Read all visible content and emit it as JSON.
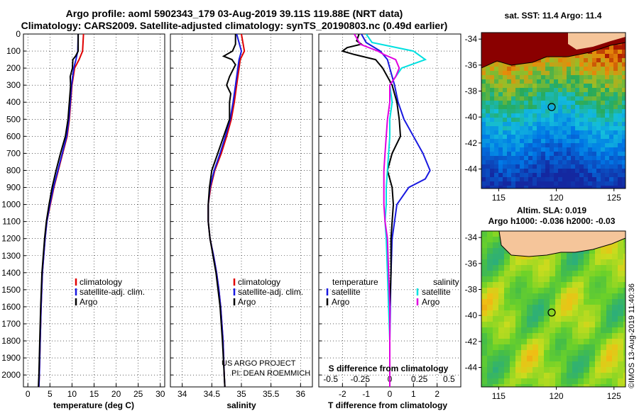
{
  "header": {
    "title_line1": "Argo profile: aoml 5902343_179 03-Aug-2019 39.11S 119.88E (NRT data)",
    "title_line2": "Climatology: CARS2009. Satellite-adjusted climatology: synTS_20190803.nc (0.49d earlier)"
  },
  "credits": {
    "project": "US ARGO PROJECT",
    "pi": "PI: DEAN ROEMMICH",
    "stamp": "©IMOS 13-Aug-2019 11:40:36"
  },
  "colors": {
    "climatology": "#e00000",
    "satellite": "#1818e0",
    "argo": "#000000",
    "sat_salinity": "#00e0e0",
    "argo_salinity": "#e000e0",
    "land": "#f5c59a"
  },
  "chart_data": [
    {
      "type": "line",
      "name": "temperature-profile",
      "xlabel": "temperature (deg C)",
      "ylabel": "depth (m)",
      "xlim": [
        -1,
        31
      ],
      "ylim": [
        2070,
        0
      ],
      "xticks": [
        "0",
        "5",
        "10",
        "15",
        "20",
        "25",
        "30"
      ],
      "yticks": [
        "0",
        "100",
        "200",
        "300",
        "400",
        "500",
        "600",
        "700",
        "800",
        "900",
        "1000",
        "1100",
        "1200",
        "1300",
        "1400",
        "1500",
        "1600",
        "1700",
        "1800",
        "1900",
        "2000"
      ],
      "legend": [
        "climatology",
        "satellite-adj. clim.",
        "Argo"
      ],
      "series": [
        {
          "name": "climatology",
          "color": "#e00000",
          "depth": [
            0,
            100,
            150,
            200,
            300,
            500,
            600,
            700,
            800,
            900,
            1000,
            1100,
            1200,
            1400,
            1600,
            1800,
            2000,
            2070
          ],
          "values": [
            12.6,
            12.4,
            11.6,
            10.6,
            10.0,
            9.4,
            8.9,
            7.9,
            6.9,
            5.9,
            5.1,
            4.3,
            3.9,
            3.3,
            3.0,
            2.8,
            2.6,
            2.5
          ]
        },
        {
          "name": "satellite-adj. clim.",
          "color": "#1818e0",
          "depth": [
            0,
            100,
            150,
            200,
            300,
            500,
            600,
            700,
            800,
            900,
            1000,
            1100,
            1200,
            1400,
            1600,
            1800,
            2000,
            2070
          ],
          "values": [
            11.4,
            11.3,
            10.9,
            10.4,
            9.9,
            9.3,
            8.8,
            7.8,
            6.8,
            5.8,
            5.0,
            4.3,
            3.9,
            3.3,
            3.0,
            2.8,
            2.6,
            2.5
          ]
        },
        {
          "name": "Argo",
          "color": "#000000",
          "depth": [
            0,
            100,
            130,
            150,
            200,
            250,
            300,
            500,
            600,
            700,
            800,
            900,
            1000,
            1100,
            1200,
            1400,
            1600,
            1800,
            2000,
            2070
          ],
          "values": [
            11.4,
            11.4,
            10.8,
            10.2,
            10.1,
            9.6,
            9.7,
            9.1,
            8.5,
            7.4,
            6.4,
            5.5,
            4.8,
            4.2,
            3.8,
            3.2,
            2.9,
            2.7,
            2.5,
            2.4
          ]
        }
      ]
    },
    {
      "type": "line",
      "name": "salinity-profile",
      "xlabel": "salinity",
      "ylim": [
        2070,
        0
      ],
      "xlim": [
        33.8,
        36.2
      ],
      "xticks": [
        "34",
        "34.5",
        "35",
        "35.5",
        "36"
      ],
      "legend": [
        "climatology",
        "satellite-adj. clim.",
        "Argo"
      ],
      "series": [
        {
          "name": "climatology",
          "color": "#e00000",
          "depth": [
            0,
            100,
            150,
            200,
            300,
            400,
            500,
            600,
            700,
            800,
            900,
            1000,
            1100,
            1200,
            1300,
            1400,
            1500,
            1600,
            1700,
            1800,
            1900,
            2000,
            2070
          ],
          "values": [
            35.0,
            35.05,
            34.98,
            34.96,
            34.92,
            34.88,
            34.83,
            34.75,
            34.66,
            34.55,
            34.48,
            34.44,
            34.44,
            34.47,
            34.53,
            34.58,
            34.62,
            34.65,
            34.67,
            34.69,
            34.7,
            34.71,
            34.72
          ]
        },
        {
          "name": "satellite-adj. clim.",
          "color": "#1818e0",
          "depth": [
            0,
            100,
            150,
            200,
            300,
            400,
            500,
            600,
            700,
            800,
            900,
            1000,
            1100,
            1200,
            1300,
            1400,
            1500,
            1600,
            1700,
            1800,
            1900,
            2000,
            2070
          ],
          "values": [
            34.92,
            35.0,
            34.96,
            34.94,
            34.9,
            34.86,
            34.81,
            34.73,
            34.64,
            34.54,
            34.47,
            34.44,
            34.44,
            34.47,
            34.53,
            34.58,
            34.62,
            34.65,
            34.67,
            34.69,
            34.7,
            34.71,
            34.72
          ]
        },
        {
          "name": "Argo",
          "color": "#000000",
          "depth": [
            0,
            60,
            100,
            130,
            150,
            180,
            250,
            300,
            350,
            400,
            500,
            600,
            700,
            800,
            900,
            1000,
            1100,
            1200,
            1400,
            1600,
            1800,
            2000,
            2070
          ],
          "values": [
            34.9,
            34.9,
            34.85,
            34.7,
            34.84,
            34.9,
            34.8,
            34.75,
            34.82,
            34.8,
            34.8,
            34.7,
            34.6,
            34.5,
            34.46,
            34.44,
            34.44,
            34.47,
            34.57,
            34.64,
            34.68,
            34.71,
            34.72
          ]
        }
      ]
    },
    {
      "type": "line",
      "name": "difference-from-climatology",
      "xlabel": "T difference from climatology",
      "xlabel_top": "S difference from climatology",
      "xlim": [
        -3,
        3
      ],
      "ylim": [
        2070,
        0
      ],
      "xticks": [
        "-2",
        "-1",
        "0",
        "1",
        "2"
      ],
      "xticks_salinity": [
        "-0.5",
        "-0.25",
        "0",
        "0.25",
        "0.5"
      ],
      "legend_temperature_title": "temperature",
      "legend_salinity_title": "salinity",
      "legend_temperature": [
        "satellite",
        "Argo"
      ],
      "legend_salinity": [
        "satellite",
        "Argo"
      ],
      "series": [
        {
          "name": "T satellite",
          "color": "#1818e0",
          "depth": [
            0,
            50,
            100,
            150,
            200,
            300,
            400,
            500,
            600,
            700,
            800,
            850,
            900,
            1000,
            1100,
            1200,
            1400,
            1600,
            1800,
            2070
          ],
          "values": [
            -1.2,
            -1.0,
            -0.4,
            -0.1,
            0.0,
            0.2,
            0.35,
            0.6,
            1.0,
            1.4,
            1.7,
            1.5,
            0.8,
            0.3,
            0.2,
            0.1,
            0.05,
            0.02,
            0.0,
            0.0
          ]
        },
        {
          "name": "T Argo",
          "color": "#000000",
          "depth": [
            0,
            40,
            60,
            80,
            100,
            120,
            150,
            200,
            300,
            400,
            500,
            600,
            700,
            800,
            900,
            1000,
            1100,
            1200,
            1400,
            1600,
            1800,
            2070
          ],
          "values": [
            -1.3,
            -1.4,
            -1.2,
            -1.8,
            -2.0,
            -1.5,
            -0.6,
            -0.3,
            0.1,
            0.3,
            0.4,
            0.45,
            0.1,
            -0.1,
            0.1,
            0.15,
            0.1,
            0.05,
            0.05,
            0.0,
            0.0,
            0.0
          ]
        },
        {
          "name": "S satellite",
          "color": "#00e0e0",
          "depth": [
            0,
            50,
            100,
            150,
            200,
            300,
            400,
            500,
            600,
            700,
            800,
            900,
            1000,
            1100,
            1200,
            1400,
            1600,
            1800,
            2070
          ],
          "values": [
            -0.2,
            -0.15,
            0.2,
            0.3,
            0.1,
            0.0,
            0.02,
            0.0,
            0.0,
            -0.01,
            -0.02,
            -0.03,
            -0.03,
            -0.04,
            -0.03,
            -0.02,
            -0.01,
            0.0,
            0.0
          ]
        },
        {
          "name": "S Argo",
          "color": "#e000e0",
          "depth": [
            0,
            60,
            100,
            120,
            150,
            200,
            250,
            300,
            400,
            500,
            600,
            700,
            800,
            900,
            1000,
            1100,
            1200,
            1400,
            1600,
            1800,
            2070
          ],
          "values": [
            -0.3,
            -0.25,
            -0.1,
            -0.05,
            0.05,
            0.08,
            0.05,
            0.0,
            0.0,
            -0.02,
            -0.03,
            -0.04,
            -0.05,
            -0.05,
            -0.05,
            -0.04,
            -0.02,
            -0.01,
            0.0,
            0.0,
            0.0
          ]
        }
      ]
    },
    {
      "type": "heatmap",
      "name": "sst-map",
      "title": "sat. SST: 11.4 Argo: 11.4",
      "xlim": [
        113.5,
        126
      ],
      "ylim": [
        -45.5,
        -33.5
      ],
      "xticks": [
        "115",
        "120",
        "125"
      ],
      "yticks": [
        "-34",
        "-36",
        "-38",
        "-40",
        "-42",
        "-44"
      ],
      "float_position": [
        119.88,
        -39.11
      ]
    },
    {
      "type": "heatmap",
      "name": "sla-map",
      "title_line1": "Altim. SLA: 0.019",
      "title_line2": "Argo h1000: -0.036 h2000: -0.03",
      "xlim": [
        113.5,
        126
      ],
      "ylim": [
        -45.5,
        -33.5
      ],
      "xticks": [
        "115",
        "120",
        "125"
      ],
      "yticks": [
        "-34",
        "-36",
        "-38",
        "-40",
        "-42",
        "-44"
      ],
      "float_position": [
        119.88,
        -39.11
      ]
    }
  ]
}
